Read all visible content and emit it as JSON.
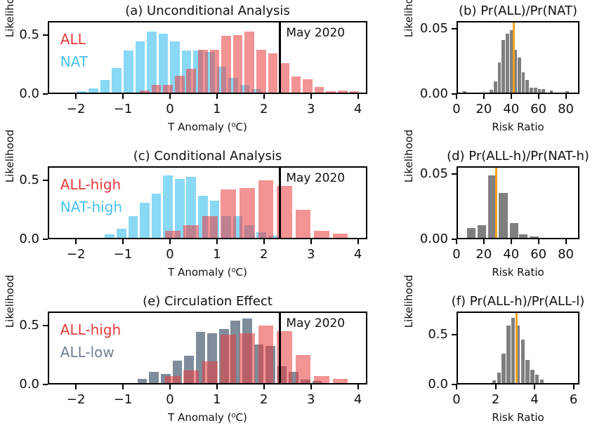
{
  "figure": {
    "background": "#ffffff",
    "text_color": "#111111",
    "colors": {
      "red_bar": "rgba(233,59,60,0.55)",
      "blue_bar": "rgba(74,195,239,0.65)",
      "slate_bar": "rgba(112,128,144,0.9)",
      "gray_bar": "#7f7f7f",
      "orange_line": "#f5a31f",
      "black_line": "#000000",
      "all_red_text": "#e93b3c",
      "nat_blue_text": "#4ac3ef",
      "slate_text": "#708090"
    }
  },
  "chart_data": [
    {
      "id": "a",
      "type": "bar",
      "col": "left",
      "title": "(a) Unconditional Analysis",
      "xlabel": "T Anomaly (⁰C)",
      "ylabel": "Likelihood",
      "xlim": [
        -2.6,
        4.2
      ],
      "ylim": [
        0,
        0.62
      ],
      "xticks": [
        {
          "v": -2,
          "label": "−2"
        },
        {
          "v": -1,
          "label": "−1"
        },
        {
          "v": 0,
          "label": "0"
        },
        {
          "v": 1,
          "label": "1"
        },
        {
          "v": 2,
          "label": "2"
        },
        {
          "v": 3,
          "label": "3"
        },
        {
          "v": 4,
          "label": "4"
        }
      ],
      "yticks": [
        {
          "v": 0,
          "label": "0.0"
        },
        {
          "v": 0.5,
          "label": "0.5"
        }
      ],
      "series": [
        {
          "name": "NAT",
          "colorKey": "blue_bar",
          "binWidth": 0.25,
          "points": [
            [
              -1.9,
              0.01
            ],
            [
              -1.65,
              0.04
            ],
            [
              -1.4,
              0.11
            ],
            [
              -1.15,
              0.22
            ],
            [
              -0.9,
              0.37
            ],
            [
              -0.65,
              0.45
            ],
            [
              -0.4,
              0.54
            ],
            [
              -0.15,
              0.52
            ],
            [
              0.1,
              0.45
            ],
            [
              0.35,
              0.37
            ],
            [
              0.6,
              0.37
            ],
            [
              0.85,
              0.36
            ],
            [
              1.1,
              0.23
            ],
            [
              1.35,
              0.13
            ],
            [
              1.6,
              0.07
            ],
            [
              1.85,
              0.03
            ]
          ]
        },
        {
          "name": "ALL",
          "colorKey": "red_bar",
          "binWidth": 0.25,
          "points": [
            [
              -0.55,
              0.02
            ],
            [
              -0.3,
              0.07
            ],
            [
              -0.05,
              0.07
            ],
            [
              0.2,
              0.15
            ],
            [
              0.45,
              0.21
            ],
            [
              0.7,
              0.38
            ],
            [
              0.95,
              0.38
            ],
            [
              1.2,
              0.5
            ],
            [
              1.45,
              0.51
            ],
            [
              1.7,
              0.54
            ],
            [
              1.95,
              0.38
            ],
            [
              2.2,
              0.35
            ],
            [
              2.45,
              0.26
            ],
            [
              2.7,
              0.14
            ],
            [
              2.95,
              0.12
            ],
            [
              3.2,
              0.05
            ],
            [
              3.45,
              0.01
            ],
            [
              3.7,
              0.02
            ],
            [
              3.95,
              0.01
            ]
          ]
        }
      ],
      "vline": {
        "x": 2.35,
        "colorKey": "black_line",
        "width": 3,
        "annotation": "May 2020"
      },
      "legend": [
        {
          "label": "ALL",
          "colorKey": "all_red_text"
        },
        {
          "label": "NAT",
          "colorKey": "nat_blue_text"
        }
      ]
    },
    {
      "id": "b",
      "type": "bar",
      "col": "right",
      "title": "(b) Pr(ALL)/Pr(NAT)",
      "xlabel": "Risk Ratio",
      "ylabel": "Likelihood",
      "xlim": [
        0,
        90
      ],
      "ylim": [
        0,
        0.056
      ],
      "xticks": [
        {
          "v": 0,
          "label": "0"
        },
        {
          "v": 20,
          "label": "20"
        },
        {
          "v": 40,
          "label": "40"
        },
        {
          "v": 60,
          "label": "60"
        },
        {
          "v": 80,
          "label": "80"
        }
      ],
      "yticks": [
        {
          "v": 0,
          "label": "0.00"
        },
        {
          "v": 0.05,
          "label": "0.05"
        }
      ],
      "series": [
        {
          "name": "risk-ratio",
          "colorKey": "gray_bar",
          "binWidth": 3,
          "points": [
            [
              5,
              0.001
            ],
            [
              25,
              0.002
            ],
            [
              28,
              0.009
            ],
            [
              31,
              0.024
            ],
            [
              34,
              0.042
            ],
            [
              37,
              0.047
            ],
            [
              40,
              0.05
            ],
            [
              43,
              0.034
            ],
            [
              46,
              0.028
            ],
            [
              49,
              0.016
            ],
            [
              52,
              0.01
            ],
            [
              55,
              0.004
            ],
            [
              58,
              0.004
            ],
            [
              61,
              0.003
            ],
            [
              64,
              0.003
            ],
            [
              70,
              0.0015
            ],
            [
              82,
              0.001
            ]
          ]
        }
      ],
      "vline": {
        "x": 42,
        "colorKey": "orange_line",
        "width": 3,
        "annotation": ""
      },
      "legend": []
    },
    {
      "id": "c",
      "type": "bar",
      "col": "left",
      "title": "(c) Conditional Analysis",
      "xlabel": "T Anomaly (⁰C)",
      "ylabel": "Likelihood",
      "xlim": [
        -2.6,
        4.2
      ],
      "ylim": [
        0,
        0.62
      ],
      "xticks": [
        {
          "v": -2,
          "label": "−2"
        },
        {
          "v": -1,
          "label": "−1"
        },
        {
          "v": 0,
          "label": "0"
        },
        {
          "v": 1,
          "label": "1"
        },
        {
          "v": 2,
          "label": "2"
        },
        {
          "v": 3,
          "label": "3"
        },
        {
          "v": 4,
          "label": "4"
        }
      ],
      "yticks": [
        {
          "v": 0,
          "label": "0.0"
        },
        {
          "v": 0.5,
          "label": "0.5"
        }
      ],
      "series": [
        {
          "name": "NAT-high",
          "colorKey": "blue_bar",
          "binWidth": 0.25,
          "points": [
            [
              -1.3,
              0.03
            ],
            [
              -1.05,
              0.08
            ],
            [
              -0.8,
              0.19
            ],
            [
              -0.55,
              0.31
            ],
            [
              -0.3,
              0.39
            ],
            [
              -0.05,
              0.55
            ],
            [
              0.2,
              0.52
            ],
            [
              0.45,
              0.54
            ],
            [
              0.7,
              0.37
            ],
            [
              0.95,
              0.33
            ],
            [
              1.2,
              0.19
            ],
            [
              1.45,
              0.19
            ],
            [
              1.7,
              0.11
            ],
            [
              1.95,
              0.05
            ],
            [
              2.2,
              0.02
            ]
          ]
        },
        {
          "name": "ALL-high",
          "colorKey": "red_bar",
          "binWidth": 0.4,
          "points": [
            [
              0.05,
              0.06
            ],
            [
              0.45,
              0.11
            ],
            [
              0.85,
              0.19
            ],
            [
              1.25,
              0.43
            ],
            [
              1.65,
              0.44
            ],
            [
              2.05,
              0.51
            ],
            [
              2.45,
              0.46
            ],
            [
              2.85,
              0.25
            ],
            [
              3.25,
              0.06
            ],
            [
              3.65,
              0.04
            ]
          ]
        }
      ],
      "vline": {
        "x": 2.35,
        "colorKey": "black_line",
        "width": 3,
        "annotation": "May 2020"
      },
      "legend": [
        {
          "label": "ALL-high",
          "colorKey": "all_red_text"
        },
        {
          "label": "NAT-high",
          "colorKey": "nat_blue_text"
        }
      ]
    },
    {
      "id": "d",
      "type": "bar",
      "col": "right",
      "title": "(d) Pr(ALL-h)/Pr(NAT-h)",
      "xlabel": "Risk Ratio",
      "ylabel": "Likelihood",
      "xlim": [
        0,
        90
      ],
      "ylim": [
        0,
        0.056
      ],
      "xticks": [
        {
          "v": 0,
          "label": "0"
        },
        {
          "v": 20,
          "label": "20"
        },
        {
          "v": 40,
          "label": "40"
        },
        {
          "v": 60,
          "label": "60"
        },
        {
          "v": 80,
          "label": "80"
        }
      ],
      "yticks": [
        {
          "v": 0,
          "label": "0.00"
        },
        {
          "v": 0.05,
          "label": "0.05"
        }
      ],
      "series": [
        {
          "name": "risk-ratio",
          "colorKey": "gray_bar",
          "binWidth": 8,
          "points": [
            [
              10,
              0.008
            ],
            [
              18,
              0.01
            ],
            [
              26,
              0.05
            ],
            [
              34,
              0.036
            ],
            [
              42,
              0.012
            ],
            [
              49,
              0.003
            ],
            [
              57,
              0.001
            ]
          ]
        }
      ],
      "vline": {
        "x": 28.5,
        "colorKey": "orange_line",
        "width": 3,
        "annotation": ""
      },
      "legend": []
    },
    {
      "id": "e",
      "type": "bar",
      "col": "left",
      "title": "(e) Circulation Effect",
      "xlabel": "T Anomaly (⁰C)",
      "ylabel": "Likelihood",
      "xlim": [
        -2.6,
        4.2
      ],
      "ylim": [
        0,
        0.62
      ],
      "xticks": [
        {
          "v": -2,
          "label": "−2"
        },
        {
          "v": -1,
          "label": "−1"
        },
        {
          "v": 0,
          "label": "0"
        },
        {
          "v": 1,
          "label": "1"
        },
        {
          "v": 2,
          "label": "2"
        },
        {
          "v": 3,
          "label": "3"
        },
        {
          "v": 4,
          "label": "4"
        }
      ],
      "yticks": [
        {
          "v": 0,
          "label": "0.0"
        },
        {
          "v": 0.5,
          "label": "0.5"
        }
      ],
      "series": [
        {
          "name": "ALL-low",
          "colorKey": "slate_bar",
          "binWidth": 0.25,
          "points": [
            [
              -0.6,
              0.04
            ],
            [
              -0.35,
              0.1
            ],
            [
              -0.1,
              0.08
            ],
            [
              0.15,
              0.2
            ],
            [
              0.4,
              0.24
            ],
            [
              0.65,
              0.45
            ],
            [
              0.9,
              0.44
            ],
            [
              1.15,
              0.48
            ],
            [
              1.4,
              0.55
            ],
            [
              1.65,
              0.57
            ],
            [
              1.9,
              0.34
            ],
            [
              2.15,
              0.33
            ],
            [
              2.4,
              0.15
            ],
            [
              2.65,
              0.1
            ],
            [
              2.9,
              0.03
            ],
            [
              3.15,
              0.02
            ]
          ]
        },
        {
          "name": "ALL-high",
          "colorKey": "red_bar",
          "binWidth": 0.4,
          "points": [
            [
              0.05,
              0.06
            ],
            [
              0.45,
              0.11
            ],
            [
              0.85,
              0.19
            ],
            [
              1.25,
              0.43
            ],
            [
              1.65,
              0.44
            ],
            [
              2.05,
              0.51
            ],
            [
              2.45,
              0.46
            ],
            [
              2.85,
              0.25
            ],
            [
              3.25,
              0.06
            ],
            [
              3.65,
              0.04
            ]
          ]
        }
      ],
      "vline": {
        "x": 2.35,
        "colorKey": "black_line",
        "width": 3,
        "annotation": "May 2020"
      },
      "legend": [
        {
          "label": "ALL-high",
          "colorKey": "all_red_text"
        },
        {
          "label": "ALL-low",
          "colorKey": "slate_text"
        }
      ]
    },
    {
      "id": "f",
      "type": "bar",
      "col": "right",
      "title": "(f) Pr(ALL-h)/Pr(ALL-l)",
      "xlabel": "Risk Ratio",
      "ylabel": "Likelihood",
      "xlim": [
        0,
        6.3
      ],
      "ylim": [
        0,
        0.73
      ],
      "xticks": [
        {
          "v": 0,
          "label": "0"
        },
        {
          "v": 2,
          "label": "2"
        },
        {
          "v": 4,
          "label": "4"
        },
        {
          "v": 6,
          "label": "6"
        }
      ],
      "yticks": [
        {
          "v": 0,
          "label": "0.0"
        },
        {
          "v": 0.5,
          "label": "0.5"
        }
      ],
      "series": [
        {
          "name": "risk-ratio",
          "colorKey": "gray_bar",
          "binWidth": 0.25,
          "points": [
            [
              1.9,
              0.03
            ],
            [
              2.15,
              0.11
            ],
            [
              2.4,
              0.31
            ],
            [
              2.65,
              0.6
            ],
            [
              2.9,
              0.68
            ],
            [
              3.15,
              0.6
            ],
            [
              3.4,
              0.45
            ],
            [
              3.65,
              0.24
            ],
            [
              3.9,
              0.14
            ],
            [
              4.15,
              0.09
            ],
            [
              4.4,
              0.04
            ]
          ]
        }
      ],
      "vline": {
        "x": 3.08,
        "colorKey": "orange_line",
        "width": 3,
        "annotation": ""
      },
      "legend": []
    }
  ]
}
